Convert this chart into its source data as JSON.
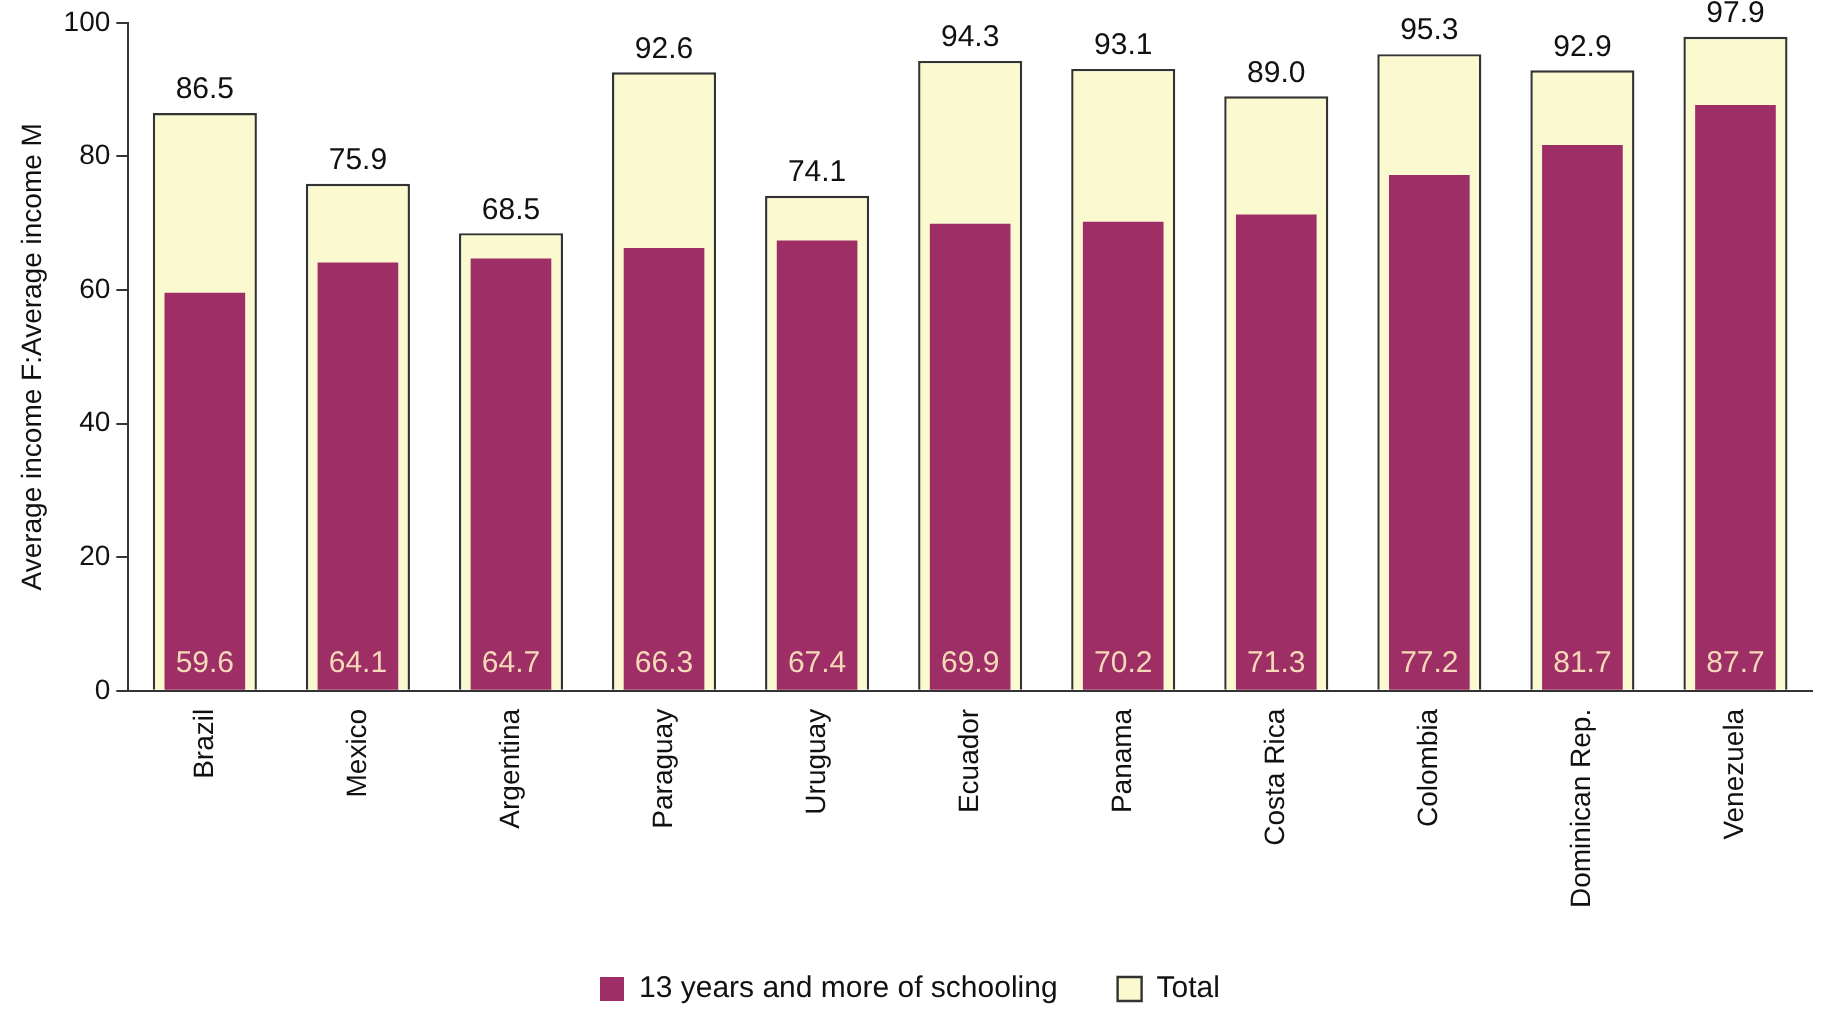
{
  "chart_data": {
    "type": "bar",
    "ylabel": "Average income F:Average income M",
    "categories": [
      "Brazil",
      "Mexico",
      "Argentina",
      "Paraguay",
      "Uruguay",
      "Ecuador",
      "Panama",
      "Costa Rica",
      "Colombia",
      "Dominican Rep.",
      "Venezuela"
    ],
    "series": [
      {
        "name": "Total",
        "color": "#fbf9d0",
        "values": [
          86.5,
          75.9,
          68.5,
          92.6,
          74.1,
          94.3,
          93.1,
          89.0,
          95.3,
          92.9,
          97.9
        ],
        "value_labels": [
          "86.5",
          "75.9",
          "68.5",
          "92.6",
          "74.1",
          "94.3",
          "93.1",
          "89.0",
          "95.3",
          "92.9",
          "97.9"
        ]
      },
      {
        "name": "13 years and more of schooling",
        "color": "#9e2f66",
        "values": [
          59.6,
          64.1,
          64.7,
          66.3,
          67.4,
          69.9,
          70.2,
          71.3,
          77.2,
          81.7,
          87.7
        ],
        "value_labels": [
          "59.6",
          "64.1",
          "64.7",
          "66.3",
          "67.4",
          "69.9",
          "70.2",
          "71.3",
          "77.2",
          "81.7",
          "87.7"
        ]
      }
    ],
    "ylim": [
      0,
      100
    ],
    "yticks": [
      0,
      20,
      40,
      60,
      80,
      100
    ],
    "grid": false,
    "legend": "bottom"
  }
}
